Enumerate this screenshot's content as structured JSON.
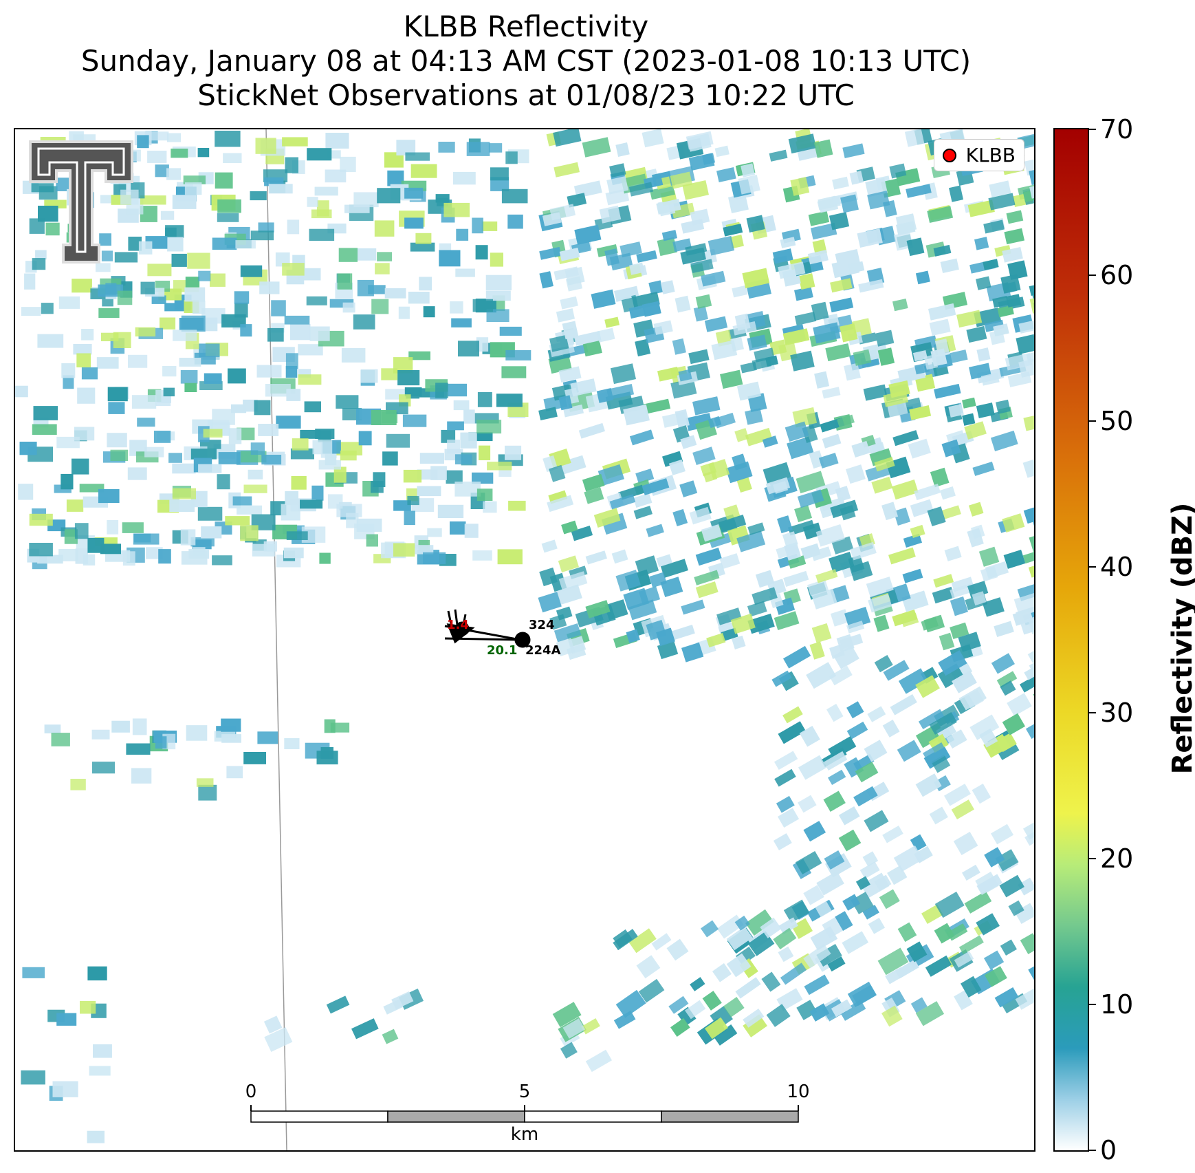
{
  "title": {
    "line1": "KLBB Reflectivity",
    "line2": "Sunday, January 08 at 04:13 AM CST (2023-01-08 10:13 UTC)",
    "line3": "StickNet Observations at 01/08/23 10:22 UTC"
  },
  "legend": {
    "label": "KLBB",
    "marker_color": "#ff0000"
  },
  "colorbar": {
    "label": "Reflectivity (dBZ)",
    "min": 0,
    "max": 70,
    "ticks": [
      "0",
      "10",
      "20",
      "30",
      "40",
      "50",
      "60",
      "70"
    ]
  },
  "scalebar": {
    "ticks": [
      "0",
      "5",
      "10"
    ],
    "unit": "km"
  },
  "stations": [
    {
      "id": "324",
      "value": "1.4",
      "value_color": "#cc0000"
    },
    {
      "id": "224A",
      "value": "20.1",
      "value_color": "#006400"
    }
  ],
  "logo": "texas-tech-double-t-logo",
  "colors": {
    "light": "#cbe6f3",
    "mid": "#4aa8cc",
    "teal": "#2d9aa8",
    "green": "#5cc28a",
    "yellow": "#c7ec6e"
  }
}
